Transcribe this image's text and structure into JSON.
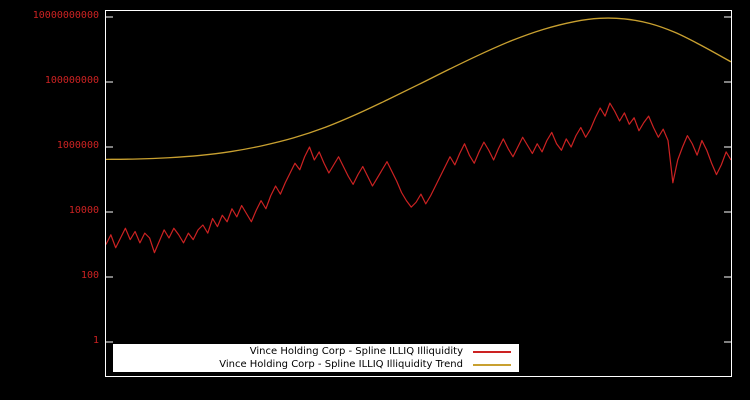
{
  "chart_data": {
    "type": "line",
    "title": "",
    "background_color": "#000000",
    "border_color": "#ffffff",
    "y_scale": "log",
    "x_axis": {
      "tick_labels": []
    },
    "y_axis": {
      "tick_labels": [
        "1",
        "100",
        "10000",
        "1000000",
        "100000000",
        "10000000000"
      ],
      "tick_log10": [
        0,
        2,
        4,
        6,
        8,
        10
      ],
      "tick_color": "#cc2222",
      "range_log10": [
        -1,
        10.2
      ]
    },
    "grid": false,
    "legend": {
      "position": "bottom-center",
      "background": "#ffffff"
    },
    "series": [
      {
        "name": "Vince Holding Corp - Spline ILLIQ Illiquidity",
        "color": "#cc2222",
        "style": "noisy-line",
        "log10_values": [
          3.0,
          3.3,
          2.9,
          3.2,
          3.5,
          3.15,
          3.4,
          3.05,
          3.35,
          3.2,
          2.75,
          3.1,
          3.45,
          3.2,
          3.5,
          3.3,
          3.05,
          3.35,
          3.15,
          3.45,
          3.6,
          3.35,
          3.8,
          3.55,
          3.9,
          3.7,
          4.1,
          3.85,
          4.2,
          3.95,
          3.7,
          4.05,
          4.35,
          4.1,
          4.5,
          4.8,
          4.55,
          4.9,
          5.2,
          5.5,
          5.3,
          5.7,
          6.0,
          5.6,
          5.85,
          5.5,
          5.2,
          5.45,
          5.7,
          5.4,
          5.1,
          4.85,
          5.15,
          5.4,
          5.1,
          4.8,
          5.05,
          5.3,
          5.55,
          5.25,
          4.95,
          4.6,
          4.35,
          4.15,
          4.3,
          4.55,
          4.25,
          4.5,
          4.8,
          5.1,
          5.4,
          5.7,
          5.45,
          5.8,
          6.1,
          5.75,
          5.5,
          5.85,
          6.15,
          5.9,
          5.6,
          5.95,
          6.25,
          5.95,
          5.7,
          6.0,
          6.3,
          6.05,
          5.8,
          6.1,
          5.85,
          6.2,
          6.45,
          6.1,
          5.9,
          6.25,
          6.0,
          6.35,
          6.6,
          6.3,
          6.55,
          6.9,
          7.2,
          6.95,
          7.35,
          7.1,
          6.8,
          7.05,
          6.7,
          6.9,
          6.5,
          6.75,
          6.95,
          6.6,
          6.3,
          6.55,
          6.2,
          4.9,
          5.6,
          6.0,
          6.35,
          6.1,
          5.75,
          6.2,
          5.9,
          5.5,
          5.15,
          5.45,
          5.85,
          5.6
        ]
      },
      {
        "name": "Vince Holding Corp - Spline ILLIQ Illiquidity Trend",
        "color": "#c8a030",
        "style": "smooth-trend",
        "points_t_log10": [
          [
            0.0,
            5.62
          ],
          [
            0.05,
            5.63
          ],
          [
            0.1,
            5.67
          ],
          [
            0.15,
            5.74
          ],
          [
            0.2,
            5.86
          ],
          [
            0.25,
            6.04
          ],
          [
            0.3,
            6.28
          ],
          [
            0.35,
            6.6
          ],
          [
            0.4,
            7.0
          ],
          [
            0.45,
            7.45
          ],
          [
            0.5,
            7.92
          ],
          [
            0.55,
            8.4
          ],
          [
            0.6,
            8.86
          ],
          [
            0.65,
            9.28
          ],
          [
            0.7,
            9.62
          ],
          [
            0.75,
            9.86
          ],
          [
            0.79,
            9.96
          ],
          [
            0.83,
            9.94
          ],
          [
            0.87,
            9.8
          ],
          [
            0.91,
            9.53
          ],
          [
            0.95,
            9.15
          ],
          [
            1.0,
            8.62
          ]
        ]
      }
    ]
  }
}
